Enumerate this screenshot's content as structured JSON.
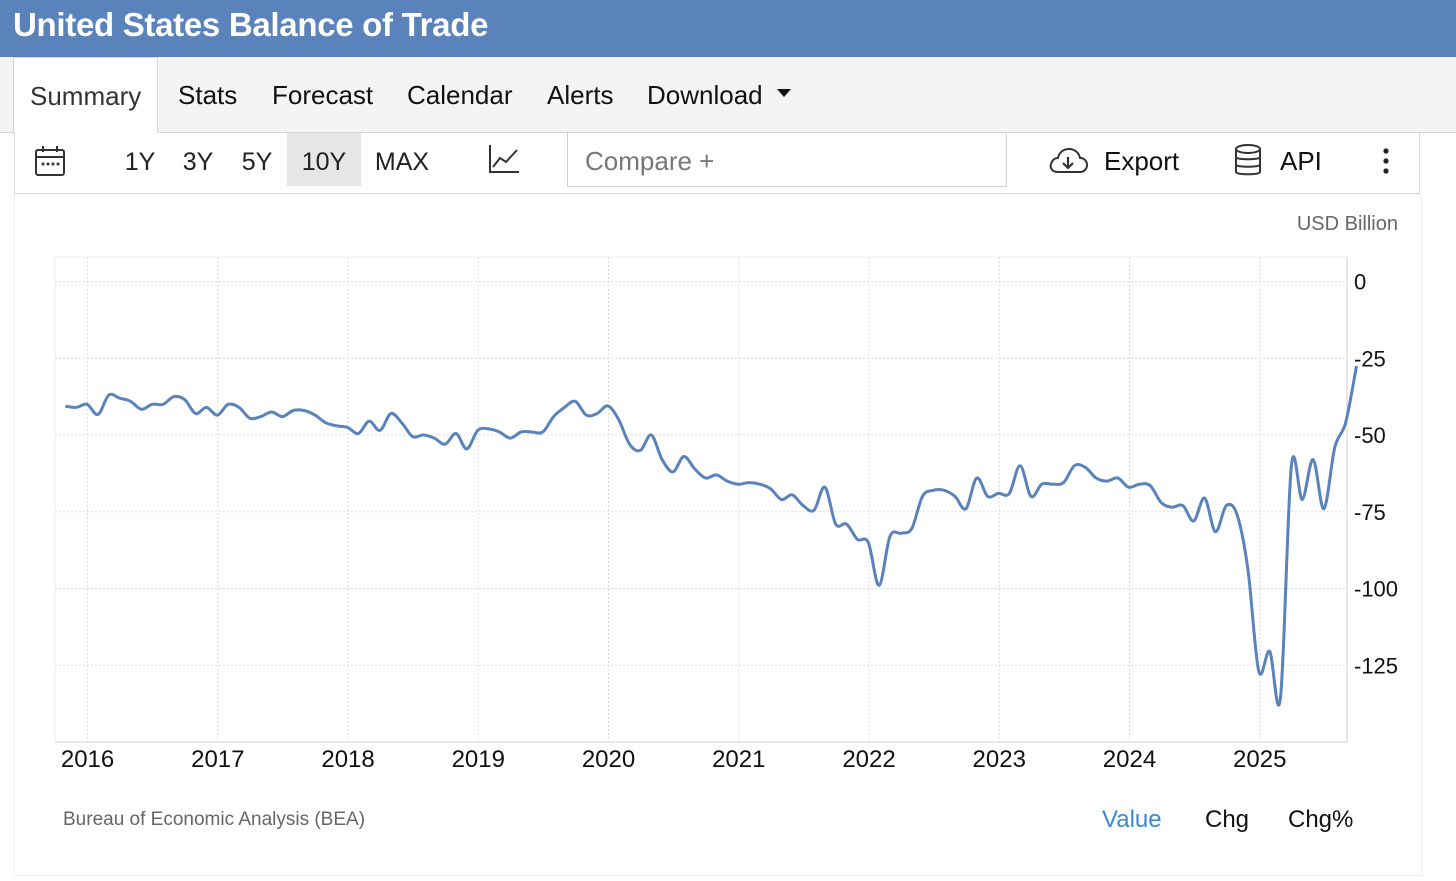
{
  "header": {
    "title": "United States Balance of Trade"
  },
  "tabs": [
    {
      "label": "Summary",
      "active": true
    },
    {
      "label": "Stats"
    },
    {
      "label": "Forecast"
    },
    {
      "label": "Calendar"
    },
    {
      "label": "Alerts"
    },
    {
      "label": "Download"
    }
  ],
  "toolbar": {
    "ranges": [
      "1Y",
      "3Y",
      "5Y",
      "10Y",
      "MAX"
    ],
    "active_range": "10Y",
    "compare_placeholder": "Compare +",
    "export_label": "Export",
    "api_label": "API"
  },
  "unit": "USD Billion",
  "source": "Bureau of Economic Analysis (BEA)",
  "value_tabs": [
    {
      "label": "Value",
      "active": true
    },
    {
      "label": "Chg"
    },
    {
      "label": "Chg%"
    }
  ],
  "colors": {
    "header": "#5a82bb",
    "line": "#5a82bb",
    "active_tab": "#3b87d8"
  },
  "chart_data": {
    "type": "line",
    "title": "United States Balance of Trade",
    "ylabel": "USD Billion",
    "ylim": [
      -150,
      8
    ],
    "yticks": [
      0,
      -25,
      -50,
      -75,
      -100,
      -125
    ],
    "xticks": [
      "2016",
      "2017",
      "2018",
      "2019",
      "2020",
      "2021",
      "2022",
      "2023",
      "2024",
      "2025"
    ],
    "x_start": 2015.83,
    "x_step": 0.0833,
    "series": [
      {
        "name": "Balance of Trade",
        "values": [
          -40.6,
          -41.0,
          -40.0,
          -43.3,
          -37.0,
          -38.0,
          -39.0,
          -41.6,
          -40.0,
          -40.0,
          -37.5,
          -38.5,
          -43.0,
          -41.0,
          -43.5,
          -40.0,
          -41.0,
          -44.5,
          -44.0,
          -42.5,
          -44.0,
          -42.0,
          -42.0,
          -43.5,
          -46.0,
          -47.0,
          -47.5,
          -49.5,
          -45.5,
          -48.5,
          -43.0,
          -46.0,
          -50.5,
          -50.0,
          -51.0,
          -53.0,
          -49.5,
          -54.5,
          -48.5,
          -48.0,
          -49.0,
          -51.0,
          -49.0,
          -49.0,
          -49.0,
          -44.0,
          -41.0,
          -39.0,
          -43.5,
          -43.0,
          -40.5,
          -45.0,
          -53.0,
          -55.0,
          -50.0,
          -58.0,
          -62.0,
          -57.0,
          -61.0,
          -64.0,
          -63.0,
          -65.0,
          -66.0,
          -65.5,
          -66.0,
          -67.5,
          -71.0,
          -69.5,
          -73.0,
          -74.5,
          -67.0,
          -79.0,
          -79.0,
          -84.0,
          -85.0,
          -99.0,
          -83.0,
          -82.0,
          -80.5,
          -70.0,
          -68.0,
          -68.0,
          -70.0,
          -74.0,
          -64.0,
          -70.0,
          -69.0,
          -69.0,
          -60.0,
          -70.0,
          -66.0,
          -66.0,
          -65.5,
          -60.0,
          -60.5,
          -64.0,
          -65.0,
          -64.0,
          -67.0,
          -66.0,
          -66.5,
          -72.0,
          -73.5,
          -73.0,
          -78.0,
          -70.5,
          -81.5,
          -73.0,
          -76.0,
          -94.0,
          -127.0,
          -120.5,
          -135.5,
          -60.0,
          -71.0,
          -58.0,
          -74.0,
          -54.0,
          -46.0,
          -27.5
        ]
      }
    ]
  }
}
